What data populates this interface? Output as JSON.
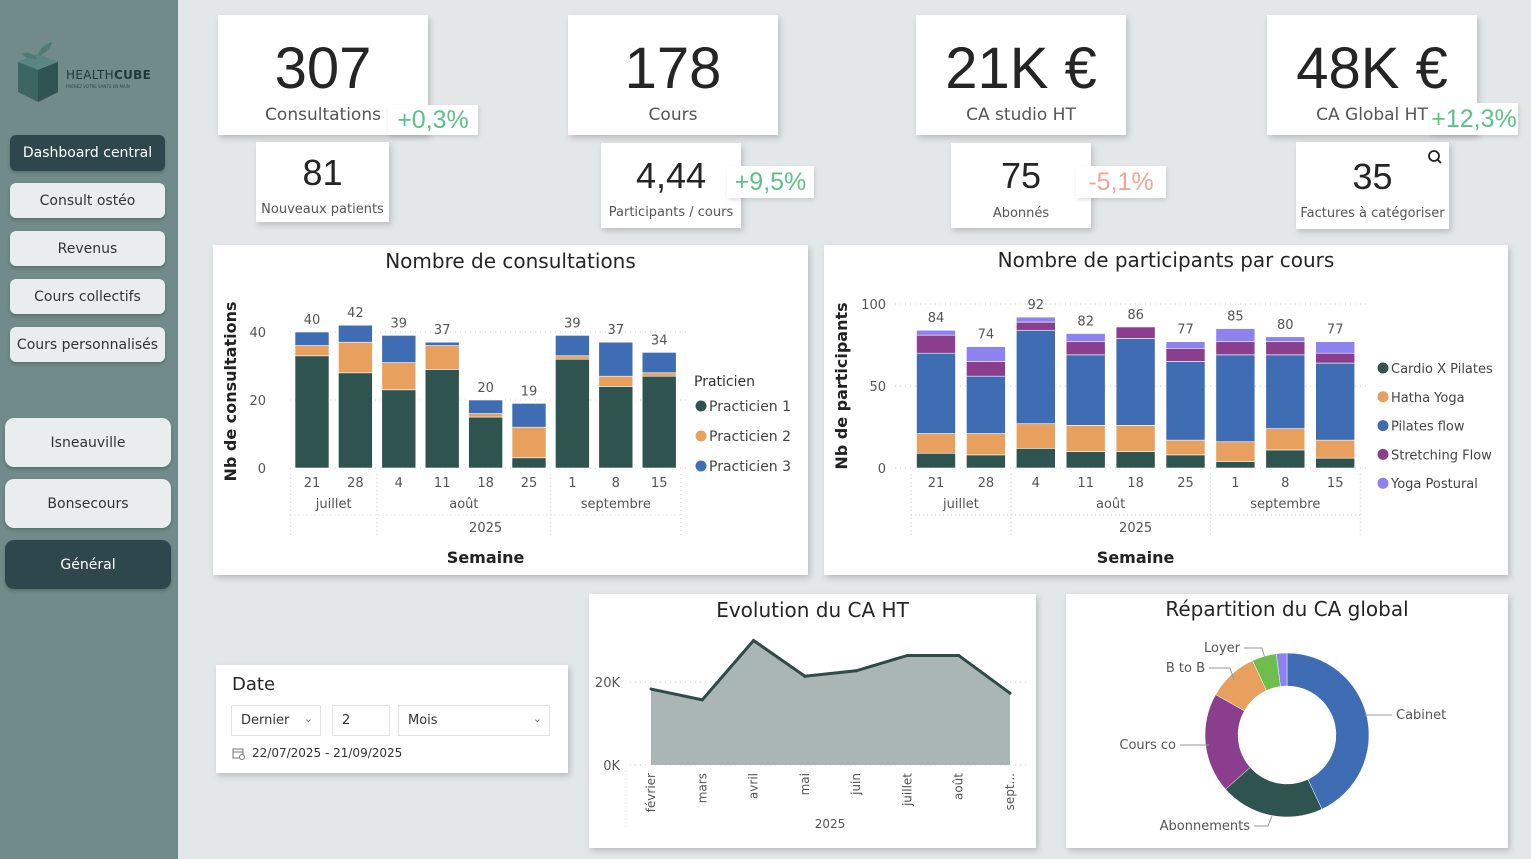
{
  "brand": {
    "name_light": "HEALTH",
    "name_bold": "CUBE",
    "tagline": "PRENEZ VOTRE SANTE EN MAIN"
  },
  "nav": {
    "items": [
      {
        "label": "Dashboard central",
        "active": true
      },
      {
        "label": "Consult ostéo",
        "active": false
      },
      {
        "label": "Revenus",
        "active": false
      },
      {
        "label": "Cours collectifs",
        "active": false
      },
      {
        "label": "Cours personnalisés",
        "active": false
      }
    ],
    "sites": [
      {
        "label": "Isneauville",
        "active": false
      },
      {
        "label": "Bonsecours",
        "active": false
      },
      {
        "label": "Général",
        "active": true
      }
    ]
  },
  "kpis": {
    "consultations": {
      "value": "307",
      "label": "Consultations",
      "delta": "+0,3%"
    },
    "nouveaux_patients": {
      "value": "81",
      "label": "Nouveaux patients"
    },
    "cours": {
      "value": "178",
      "label": "Cours"
    },
    "participants_cours": {
      "value": "4,44",
      "label": "Participants / cours",
      "delta": "+9,5%"
    },
    "ca_studio": {
      "value": "21K €",
      "label": "CA studio HT"
    },
    "abonnes": {
      "value": "75",
      "label": "Abonnés",
      "delta": "-5,1%"
    },
    "ca_global": {
      "value": "48K €",
      "label": "CA Global HT",
      "delta": "+12,3%"
    },
    "factures": {
      "value": "35",
      "label": "Factures à catégoriser",
      "icon": "search-icon"
    }
  },
  "colors": {
    "positive": "#5cc28a",
    "negative": "#f0a595",
    "sidebar": "#708b89",
    "nav_dark": "#2e474d"
  },
  "date_filter": {
    "title": "Date",
    "mode": "Dernier",
    "count": "2",
    "unit": "Mois",
    "range": "22/07/2025 - 21/09/2025"
  },
  "chart_data": [
    {
      "type": "bar",
      "stacked": true,
      "title": "Nombre de consultations",
      "xlabel": "Semaine",
      "ylabel": "Nb de consultations",
      "categories": [
        "21",
        "28",
        "4",
        "11",
        "18",
        "25",
        "1",
        "8",
        "15"
      ],
      "month_groups": [
        {
          "label": "juillet",
          "count": 2
        },
        {
          "label": "août",
          "count": 4
        },
        {
          "label": "septembre",
          "count": 3
        }
      ],
      "year": "2025",
      "yticks": [
        0,
        20,
        40
      ],
      "ylim": [
        0,
        45
      ],
      "totals": [
        40,
        42,
        39,
        37,
        20,
        19,
        39,
        37,
        34
      ],
      "legend_title": "Praticien",
      "legend_position": "right",
      "series": [
        {
          "name": "Practicien 1",
          "color": "#2f5450",
          "values": [
            33,
            28,
            23,
            29,
            15,
            3,
            32,
            24,
            27
          ]
        },
        {
          "name": "Practicien 2",
          "color": "#e8a05e",
          "values": [
            3,
            9,
            8,
            7,
            1,
            9,
            1,
            3,
            1
          ]
        },
        {
          "name": "Practicien 3",
          "color": "#3f6db3",
          "values": [
            4,
            5,
            8,
            1,
            4,
            7,
            6,
            10,
            6
          ]
        }
      ]
    },
    {
      "type": "bar",
      "stacked": true,
      "title": "Nombre de participants par cours",
      "xlabel": "Semaine",
      "ylabel": "Nb de participants",
      "categories": [
        "21",
        "28",
        "4",
        "11",
        "18",
        "25",
        "1",
        "8",
        "15"
      ],
      "month_groups": [
        {
          "label": "juillet",
          "count": 2
        },
        {
          "label": "août",
          "count": 4
        },
        {
          "label": "septembre",
          "count": 3
        }
      ],
      "year": "2025",
      "yticks": [
        0,
        50,
        100
      ],
      "ylim": [
        0,
        100
      ],
      "totals": [
        84,
        74,
        92,
        82,
        86,
        77,
        85,
        80,
        77
      ],
      "legend_position": "right",
      "series": [
        {
          "name": "Cardio X Pilates",
          "color": "#2f5450",
          "values": [
            9,
            8,
            12,
            10,
            10,
            8,
            4,
            11,
            6
          ]
        },
        {
          "name": "Hatha Yoga",
          "color": "#e8a05e",
          "values": [
            12,
            13,
            15,
            16,
            16,
            9,
            12,
            13,
            11
          ]
        },
        {
          "name": "Pilates flow",
          "color": "#3f6db3",
          "values": [
            49,
            35,
            57,
            43,
            53,
            48,
            53,
            45,
            47
          ]
        },
        {
          "name": "Stretching Flow",
          "color": "#8b3e8e",
          "values": [
            11,
            9,
            5,
            8,
            7,
            8,
            8,
            8,
            6
          ]
        },
        {
          "name": "Yoga Postural",
          "color": "#8c82f0",
          "values": [
            3,
            9,
            3,
            5,
            0,
            4,
            8,
            3,
            7
          ]
        }
      ]
    },
    {
      "type": "area",
      "title": "Evolution du CA HT",
      "categories": [
        "février",
        "mars",
        "avril",
        "mai",
        "juin",
        "juillet",
        "août",
        "sept..."
      ],
      "year": "2025",
      "values": [
        18300,
        15700,
        30000,
        21400,
        22700,
        26400,
        26400,
        17300
      ],
      "yticks": [
        {
          "v": 0,
          "label": "0K"
        },
        {
          "v": 20000,
          "label": "20K"
        }
      ],
      "ylim": [
        0,
        32000
      ],
      "line_color": "#2f4a47",
      "fill_color": "#a9b6b4"
    },
    {
      "type": "pie",
      "donut": true,
      "title": "Répartition du CA global",
      "slices": [
        {
          "label": "Cabinet",
          "value": 43,
          "color": "#3f6db3"
        },
        {
          "label": "Abonnements",
          "value": 20.5,
          "color": "#2f5450"
        },
        {
          "label": "Cours co",
          "value": 19.7,
          "color": "#8b3e8e"
        },
        {
          "label": "B to B",
          "value": 9.9,
          "color": "#e8a05e"
        },
        {
          "label": "Loyer",
          "value": 4.8,
          "color": "#6cbf4c"
        },
        {
          "label": "",
          "value": 2.1,
          "color": "#8c82f0"
        }
      ]
    }
  ]
}
